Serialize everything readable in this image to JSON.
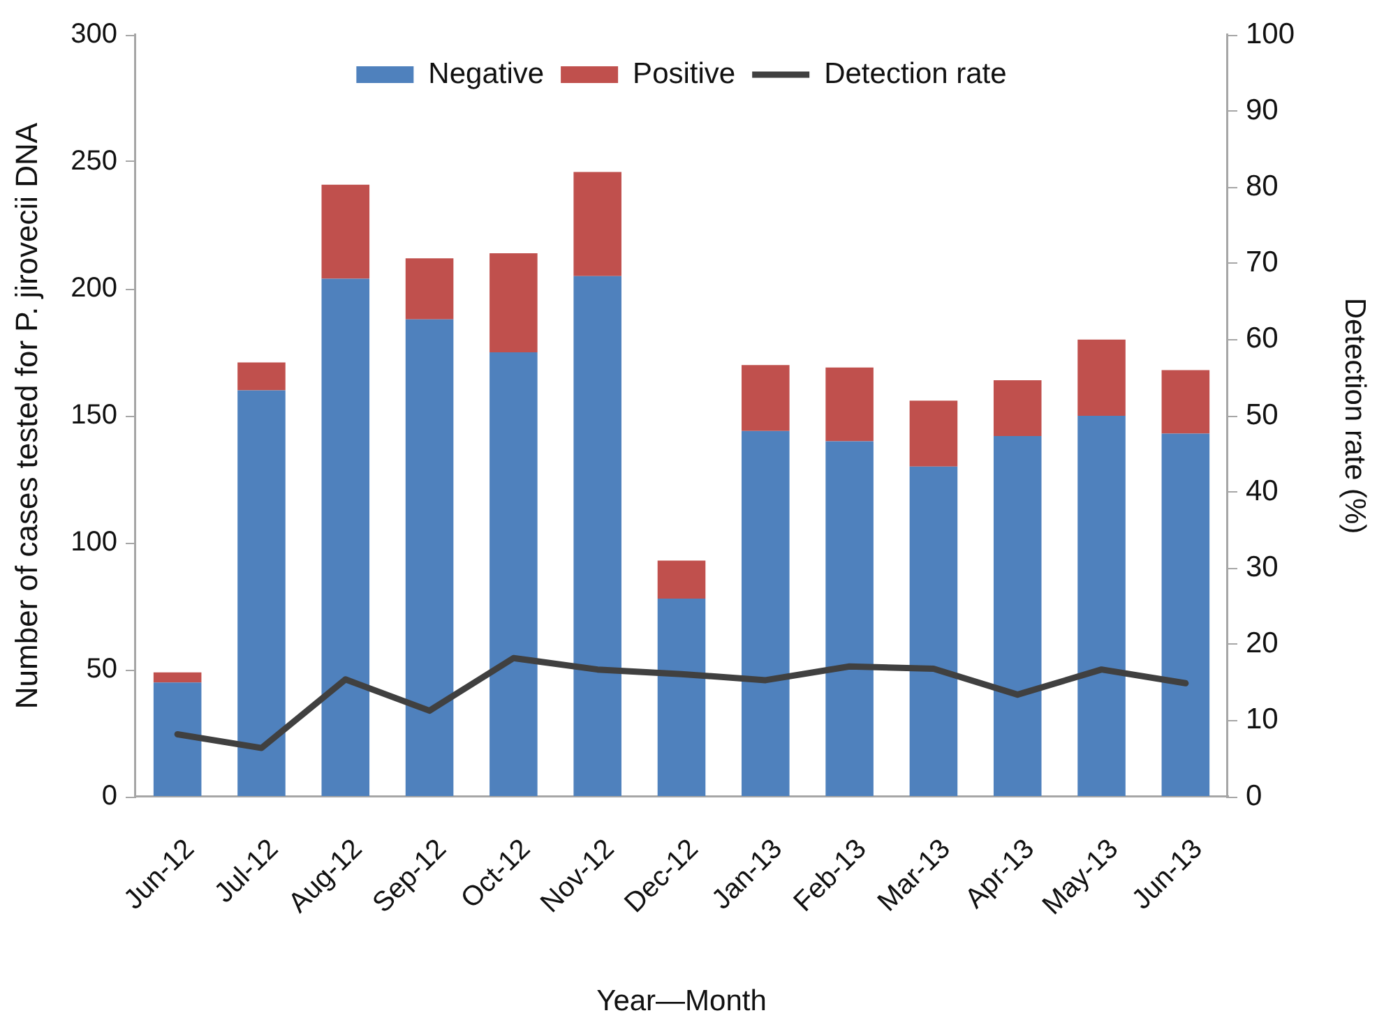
{
  "chart_data": {
    "type": "bar",
    "stacked": true,
    "xlabel": "Year—Month",
    "ylabel": "Number of cases tested for P. jirovecii DNA",
    "y2label": "Detection rate (%)",
    "categories": [
      "Jun-12",
      "Jul-12",
      "Aug-12",
      "Sep-12",
      "Oct-12",
      "Nov-12",
      "Dec-12",
      "Jan-13",
      "Feb-13",
      "Mar-13",
      "Apr-13",
      "May-13",
      "Jun-13"
    ],
    "series": [
      {
        "name": "Negative",
        "color": "#4f81bd",
        "values": [
          45,
          160,
          204,
          188,
          175,
          205,
          78,
          144,
          140,
          130,
          142,
          150,
          143
        ]
      },
      {
        "name": "Positive",
        "color": "#c0504d",
        "values": [
          4,
          11,
          37,
          24,
          39,
          41,
          15,
          26,
          29,
          26,
          22,
          30,
          25
        ]
      },
      {
        "name": "Detection rate",
        "type": "line",
        "axis": "y2",
        "color": "#404040",
        "values": [
          8.2,
          6.4,
          15.4,
          11.3,
          18.2,
          16.7,
          16.1,
          15.3,
          17.1,
          16.8,
          13.4,
          16.7,
          14.9
        ]
      }
    ],
    "ylim": [
      0,
      300
    ],
    "yticks": [
      0,
      50,
      100,
      150,
      200,
      250,
      300
    ],
    "y2lim": [
      0,
      100
    ],
    "y2ticks": [
      0,
      10,
      20,
      30,
      40,
      50,
      60,
      70,
      80,
      90,
      100
    ],
    "grid": false,
    "legend": "top",
    "marker": "none"
  }
}
